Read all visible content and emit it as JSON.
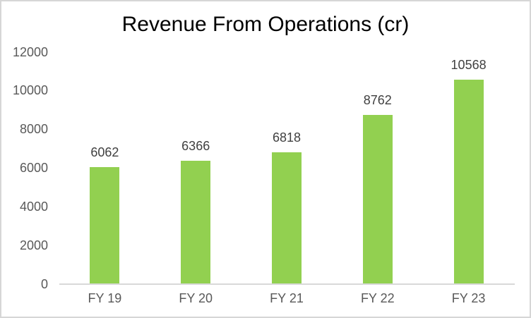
{
  "chart_data": {
    "type": "bar",
    "title": "Revenue From Operations (cr)",
    "categories": [
      "FY 19",
      "FY 20",
      "FY 21",
      "FY 22",
      "FY 23"
    ],
    "values": [
      6062,
      6366,
      6818,
      8762,
      10568
    ],
    "data_labels": [
      "6062",
      "6366",
      "6818",
      "8762",
      "10568"
    ],
    "yticks": [
      0,
      2000,
      4000,
      6000,
      8000,
      10000,
      12000
    ],
    "ylim": [
      0,
      12000
    ],
    "ytick_step": 2000,
    "xlabel": "",
    "ylabel": "",
    "grid": false,
    "legend": false
  },
  "colors": {
    "bar_fill": "#92d050",
    "title_text": "#000000",
    "axis_text": "#595959",
    "data_label_text": "#404040",
    "axis_line": "#d9d9d9",
    "chart_border": "#d6d6d6",
    "background": "#ffffff"
  }
}
